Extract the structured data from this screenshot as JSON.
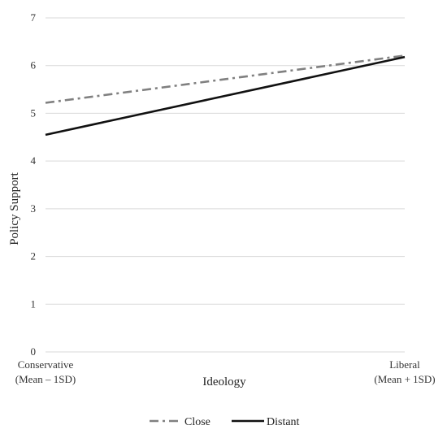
{
  "chart_data": {
    "type": "line",
    "categories": [
      [
        "Conservative",
        "(Mean – 1SD)"
      ],
      [
        "Liberal",
        "(Mean + 1SD)"
      ]
    ],
    "series": [
      {
        "name": "Close",
        "values": [
          5.22,
          6.21
        ],
        "color": "#808080",
        "style": "dash-dot"
      },
      {
        "name": "Distant",
        "values": [
          4.55,
          6.18
        ],
        "color": "#111111",
        "style": "solid"
      }
    ],
    "xlabel": "Ideology",
    "ylabel": "Policy Support",
    "ylim": [
      0,
      7
    ],
    "yticks": [
      0,
      1,
      2,
      3,
      4,
      5,
      6,
      7
    ],
    "grid": true,
    "legend": "bottom"
  }
}
